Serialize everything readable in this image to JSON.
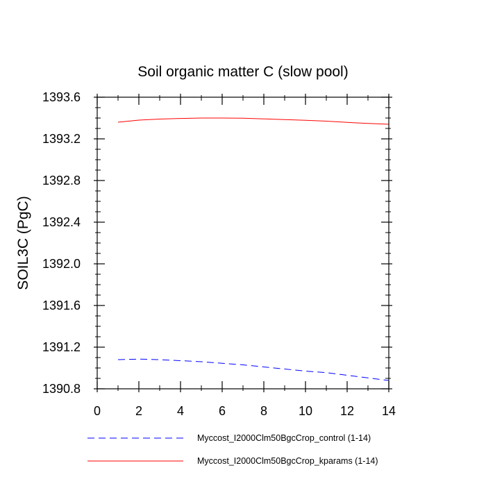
{
  "chart_data": {
    "type": "line",
    "title": "Soil organic matter C (slow pool)",
    "xlabel": "",
    "ylabel": "SOIL3C  (PgC)",
    "xlim": [
      0,
      14
    ],
    "ylim": [
      1390.8,
      1393.6
    ],
    "x_ticks": [
      0,
      2,
      4,
      6,
      8,
      10,
      12,
      14
    ],
    "x_tick_labels": [
      "0",
      "2",
      "4",
      "6",
      "8",
      "10",
      "12",
      "14"
    ],
    "y_ticks": [
      1390.8,
      1391.2,
      1391.6,
      1392.0,
      1392.4,
      1392.8,
      1393.2,
      1393.6
    ],
    "y_tick_labels": [
      "1390.8",
      "1391.2",
      "1391.6",
      "1392.0",
      "1392.4",
      "1392.8",
      "1393.2",
      "1393.6"
    ],
    "grid": false,
    "legend_position": "bottom",
    "series": [
      {
        "name": "Myccost_I2000Clm50BgcCrop_control (1-14)",
        "color": "#0000ff",
        "style": "dashed",
        "x": [
          1,
          2,
          3,
          4,
          5,
          6,
          7,
          8,
          9,
          10,
          11,
          12,
          13,
          14
        ],
        "y": [
          1391.08,
          1391.085,
          1391.08,
          1391.07,
          1391.06,
          1391.045,
          1391.03,
          1391.01,
          1390.99,
          1390.97,
          1390.955,
          1390.93,
          1390.905,
          1390.88
        ]
      },
      {
        "name": "Myccost_I2000Clm50BgcCrop_kparams (1-14)",
        "color": "#ff0000",
        "style": "solid",
        "x": [
          1,
          2,
          3,
          4,
          5,
          6,
          7,
          8,
          9,
          10,
          11,
          12,
          13,
          14
        ],
        "y": [
          1393.36,
          1393.38,
          1393.39,
          1393.396,
          1393.4,
          1393.4,
          1393.398,
          1393.392,
          1393.385,
          1393.378,
          1393.37,
          1393.358,
          1393.348,
          1393.34
        ]
      }
    ]
  }
}
